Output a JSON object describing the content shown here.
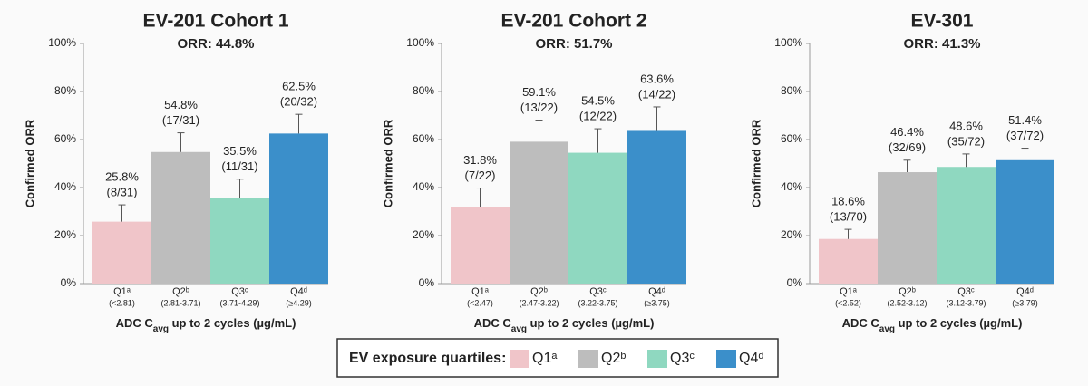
{
  "chart_data": [
    {
      "type": "bar",
      "title": "EV-201 Cohort 1",
      "subtitle": "ORR: 44.8%",
      "y_label": "Confirmed ORR",
      "x_label": [
        "ADC C",
        "avg",
        " up to 2 cycles (µg/mL)"
      ],
      "categories": [
        "Q1ᵃ",
        "Q2ᵇ",
        "Q3ᶜ",
        "Q4ᵈ"
      ],
      "category_ranges": [
        "(<2.81)",
        "(2.81-3.71)",
        "(3.71-4.29)",
        "(≥4.29)"
      ],
      "values": [
        25.8,
        54.8,
        35.5,
        62.5
      ],
      "value_labels": [
        "25.8%",
        "54.8%",
        "35.5%",
        "62.5%"
      ],
      "counts": [
        "(8/31)",
        "(17/31)",
        "(11/31)",
        "(20/32)"
      ],
      "errors": [
        7,
        8,
        8,
        8
      ],
      "colors": [
        "#f0c5c9",
        "#bdbdbd",
        "#8fd8c0",
        "#3b8fca"
      ],
      "ylim": [
        0,
        100
      ],
      "yticks": [
        {
          "value": 0,
          "label": "0%"
        },
        {
          "value": 20,
          "label": "20%"
        },
        {
          "value": 40,
          "label": "40%"
        },
        {
          "value": 60,
          "label": "60%"
        },
        {
          "value": 80,
          "label": "80%"
        },
        {
          "value": 100,
          "label": "100%"
        }
      ]
    },
    {
      "type": "bar",
      "title": "EV-201 Cohort 2",
      "subtitle": "ORR: 51.7%",
      "y_label": "Confirmed ORR",
      "x_label": [
        "ADC C",
        "avg",
        " up to 2 cycles (µg/mL)"
      ],
      "categories": [
        "Q1ᵃ",
        "Q2ᵇ",
        "Q3ᶜ",
        "Q4ᵈ"
      ],
      "category_ranges": [
        "(<2.47)",
        "(2.47-3.22)",
        "(3.22-3.75)",
        "(≥3.75)"
      ],
      "values": [
        31.8,
        59.1,
        54.5,
        63.6
      ],
      "value_labels": [
        "31.8%",
        "59.1%",
        "54.5%",
        "63.6%"
      ],
      "counts": [
        "(7/22)",
        "(13/22)",
        "(12/22)",
        "(14/22)"
      ],
      "errors": [
        8,
        9,
        10,
        10
      ],
      "colors": [
        "#f0c5c9",
        "#bdbdbd",
        "#8fd8c0",
        "#3b8fca"
      ],
      "ylim": [
        0,
        100
      ],
      "yticks": [
        {
          "value": 0,
          "label": "0%"
        },
        {
          "value": 20,
          "label": "20%"
        },
        {
          "value": 40,
          "label": "40%"
        },
        {
          "value": 60,
          "label": "60%"
        },
        {
          "value": 80,
          "label": "80%"
        },
        {
          "value": 100,
          "label": "100%"
        }
      ]
    },
    {
      "type": "bar",
      "title": "EV-301",
      "subtitle": "ORR: 41.3%",
      "y_label": "Confirmed ORR",
      "x_label": [
        "ADC C",
        "avg",
        " up to 2 cycles (µg/mL)"
      ],
      "categories": [
        "Q1ᵃ",
        "Q2ᵇ",
        "Q3ᶜ",
        "Q4ᵈ"
      ],
      "category_ranges": [
        "(<2.52)",
        "(2.52-3.12)",
        "(3.12-3.79)",
        "(≥3.79)"
      ],
      "values": [
        18.6,
        46.4,
        48.6,
        51.4
      ],
      "value_labels": [
        "18.6%",
        "46.4%",
        "48.6%",
        "51.4%"
      ],
      "counts": [
        "(13/70)",
        "(32/69)",
        "(35/72)",
        "(37/72)"
      ],
      "errors": [
        4,
        5,
        5.4,
        5
      ],
      "colors": [
        "#f0c5c9",
        "#bdbdbd",
        "#8fd8c0",
        "#3b8fca"
      ],
      "ylim": [
        0,
        100
      ],
      "yticks": [
        {
          "value": 0,
          "label": "0%"
        },
        {
          "value": 20,
          "label": "20%"
        },
        {
          "value": 40,
          "label": "40%"
        },
        {
          "value": 60,
          "label": "60%"
        },
        {
          "value": 80,
          "label": "80%"
        },
        {
          "value": 100,
          "label": "100%"
        }
      ]
    }
  ],
  "legend": {
    "title": "EV exposure quartiles:",
    "items": [
      {
        "name": "Q1ᵃ",
        "color": "#f0c5c9"
      },
      {
        "name": "Q2ᵇ",
        "color": "#bdbdbd"
      },
      {
        "name": "Q3ᶜ",
        "color": "#8fd8c0"
      },
      {
        "name": "Q4ᵈ",
        "color": "#3b8fca"
      }
    ]
  }
}
